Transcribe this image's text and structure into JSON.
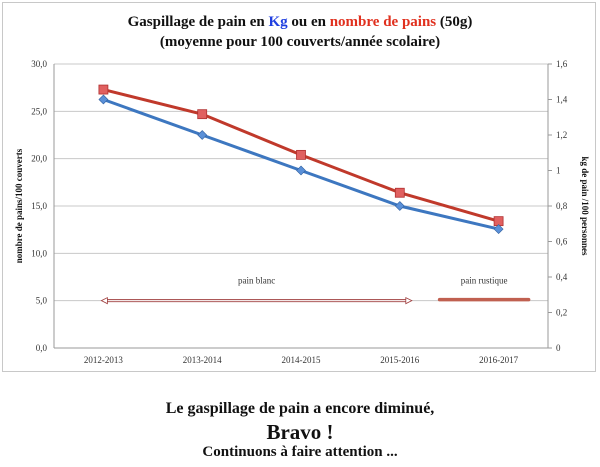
{
  "title": {
    "part1": "Gaspillage de pain en ",
    "kg": "Kg",
    "part2": " ou en ",
    "nombre": "nombre de pains",
    "part3": " (50g)",
    "line2": "(moyenne pour 100 couverts/année scolaire)",
    "kg_color": "#1f3fe0",
    "nombre_color": "#e0301e"
  },
  "chart_data": {
    "type": "line",
    "categories": [
      "2012-2013",
      "2013-2014",
      "2014-2015",
      "2015-2016",
      "2016-2017"
    ],
    "ylabel_left": "nombre de pains/100 couverts",
    "ylabel_right": "kg de pain /100 personnes",
    "ylim_left": [
      0,
      30
    ],
    "ylim_right": [
      0,
      1.6
    ],
    "yticks_left": [
      "0,0",
      "5,0",
      "10,0",
      "15,0",
      "20,0",
      "25,0",
      "30,0"
    ],
    "yticks_right": [
      "0",
      "0,2",
      "0,4",
      "0,6",
      "0,8",
      "1",
      "1,2",
      "1,4",
      "1,6"
    ],
    "grid": true,
    "series": [
      {
        "axis": "left",
        "color": "#c0392b",
        "marker": "square",
        "values": [
          27.3,
          24.7,
          20.4,
          16.4,
          13.4
        ]
      },
      {
        "axis": "right",
        "color": "#3d77c0",
        "marker": "diamond",
        "values": [
          1.4,
          1.2,
          1.0,
          0.8,
          0.67
        ]
      }
    ],
    "annotations": [
      {
        "text": "pain blanc",
        "from": "2012-2013",
        "to": "2015-2016",
        "y_left": 5
      },
      {
        "text": "pain rustique",
        "from": "2015-2016",
        "to": "2016-2017",
        "y_left": 5
      }
    ]
  },
  "message": {
    "line1": "Le gaspillage de pain a encore diminué,",
    "line2": "Bravo !",
    "line3": "Continuons à faire attention ..."
  }
}
